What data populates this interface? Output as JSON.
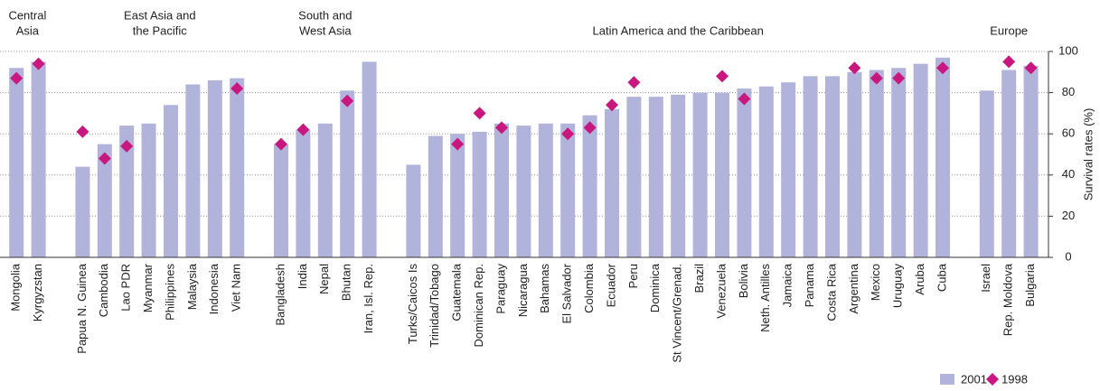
{
  "chart_data": {
    "type": "bar",
    "ylabel": "Survival rates (%)",
    "ylim": [
      0,
      100
    ],
    "yticks": [
      0,
      20,
      40,
      60,
      80,
      100
    ],
    "grid": true,
    "series": [
      {
        "name": "2001",
        "color": "#b1b3da"
      },
      {
        "name": "1998",
        "color": "#c8187f"
      }
    ],
    "groups": [
      {
        "name": [
          "Central",
          "Asia"
        ],
        "categories": [
          "Mongolia",
          "Kyrgyzstan"
        ],
        "values": [
          [
            92,
            95
          ],
          [
            87,
            94
          ]
        ]
      },
      {
        "name": [
          "East Asia and",
          "the Pacific"
        ],
        "categories": [
          "Papua N. Guinea",
          "Cambodia",
          "Lao PDR",
          "Myanmar",
          "Philippines",
          "Malaysia",
          "Indonesia",
          "Viet Nam"
        ],
        "values": [
          [
            44,
            55,
            64,
            65,
            74,
            84,
            86,
            87
          ],
          [
            61,
            48,
            54,
            null,
            null,
            null,
            null,
            82
          ]
        ]
      },
      {
        "name": [
          "South and",
          "West Asia"
        ],
        "categories": [
          "Bangladesh",
          "India",
          "Nepal",
          "Bhutan",
          "Iran, Isl. Rep."
        ],
        "values": [
          [
            55,
            62,
            65,
            81,
            95
          ],
          [
            55,
            62,
            null,
            76,
            null
          ]
        ]
      },
      {
        "name": [
          "Latin America and the Caribbean"
        ],
        "categories": [
          "Turks/Caicos Is",
          "Trinidad/Tobago",
          "Guatemala",
          "Dominican Rep.",
          "Paraguay",
          "Nicaragua",
          "Bahamas",
          "El Salvador",
          "Colombia",
          "Ecuador",
          "Peru",
          "Dominica",
          "St Vincent/Grenad.",
          "Brazil",
          "Venezuela",
          "Bolivia",
          "Neth. Antilles",
          "Jamaica",
          "Panama",
          "Costa Rica",
          "Argentina",
          "Mexico",
          "Uruguay",
          "Aruba",
          "Cuba"
        ],
        "values": [
          [
            45,
            59,
            60,
            61,
            65,
            64,
            65,
            65,
            69,
            72,
            78,
            78,
            79,
            80,
            80,
            82,
            83,
            85,
            88,
            88,
            90,
            91,
            92,
            94,
            97
          ],
          [
            null,
            null,
            55,
            70,
            63,
            null,
            null,
            60,
            63,
            74,
            85,
            null,
            null,
            null,
            88,
            77,
            null,
            null,
            null,
            null,
            92,
            87,
            87,
            null,
            92
          ]
        ]
      },
      {
        "name": [
          "Europe"
        ],
        "categories": [
          "Israel",
          "Rep. Moldova",
          "Bulgaria"
        ],
        "values": [
          [
            81,
            91,
            93
          ],
          [
            null,
            95,
            92
          ]
        ]
      }
    ]
  }
}
